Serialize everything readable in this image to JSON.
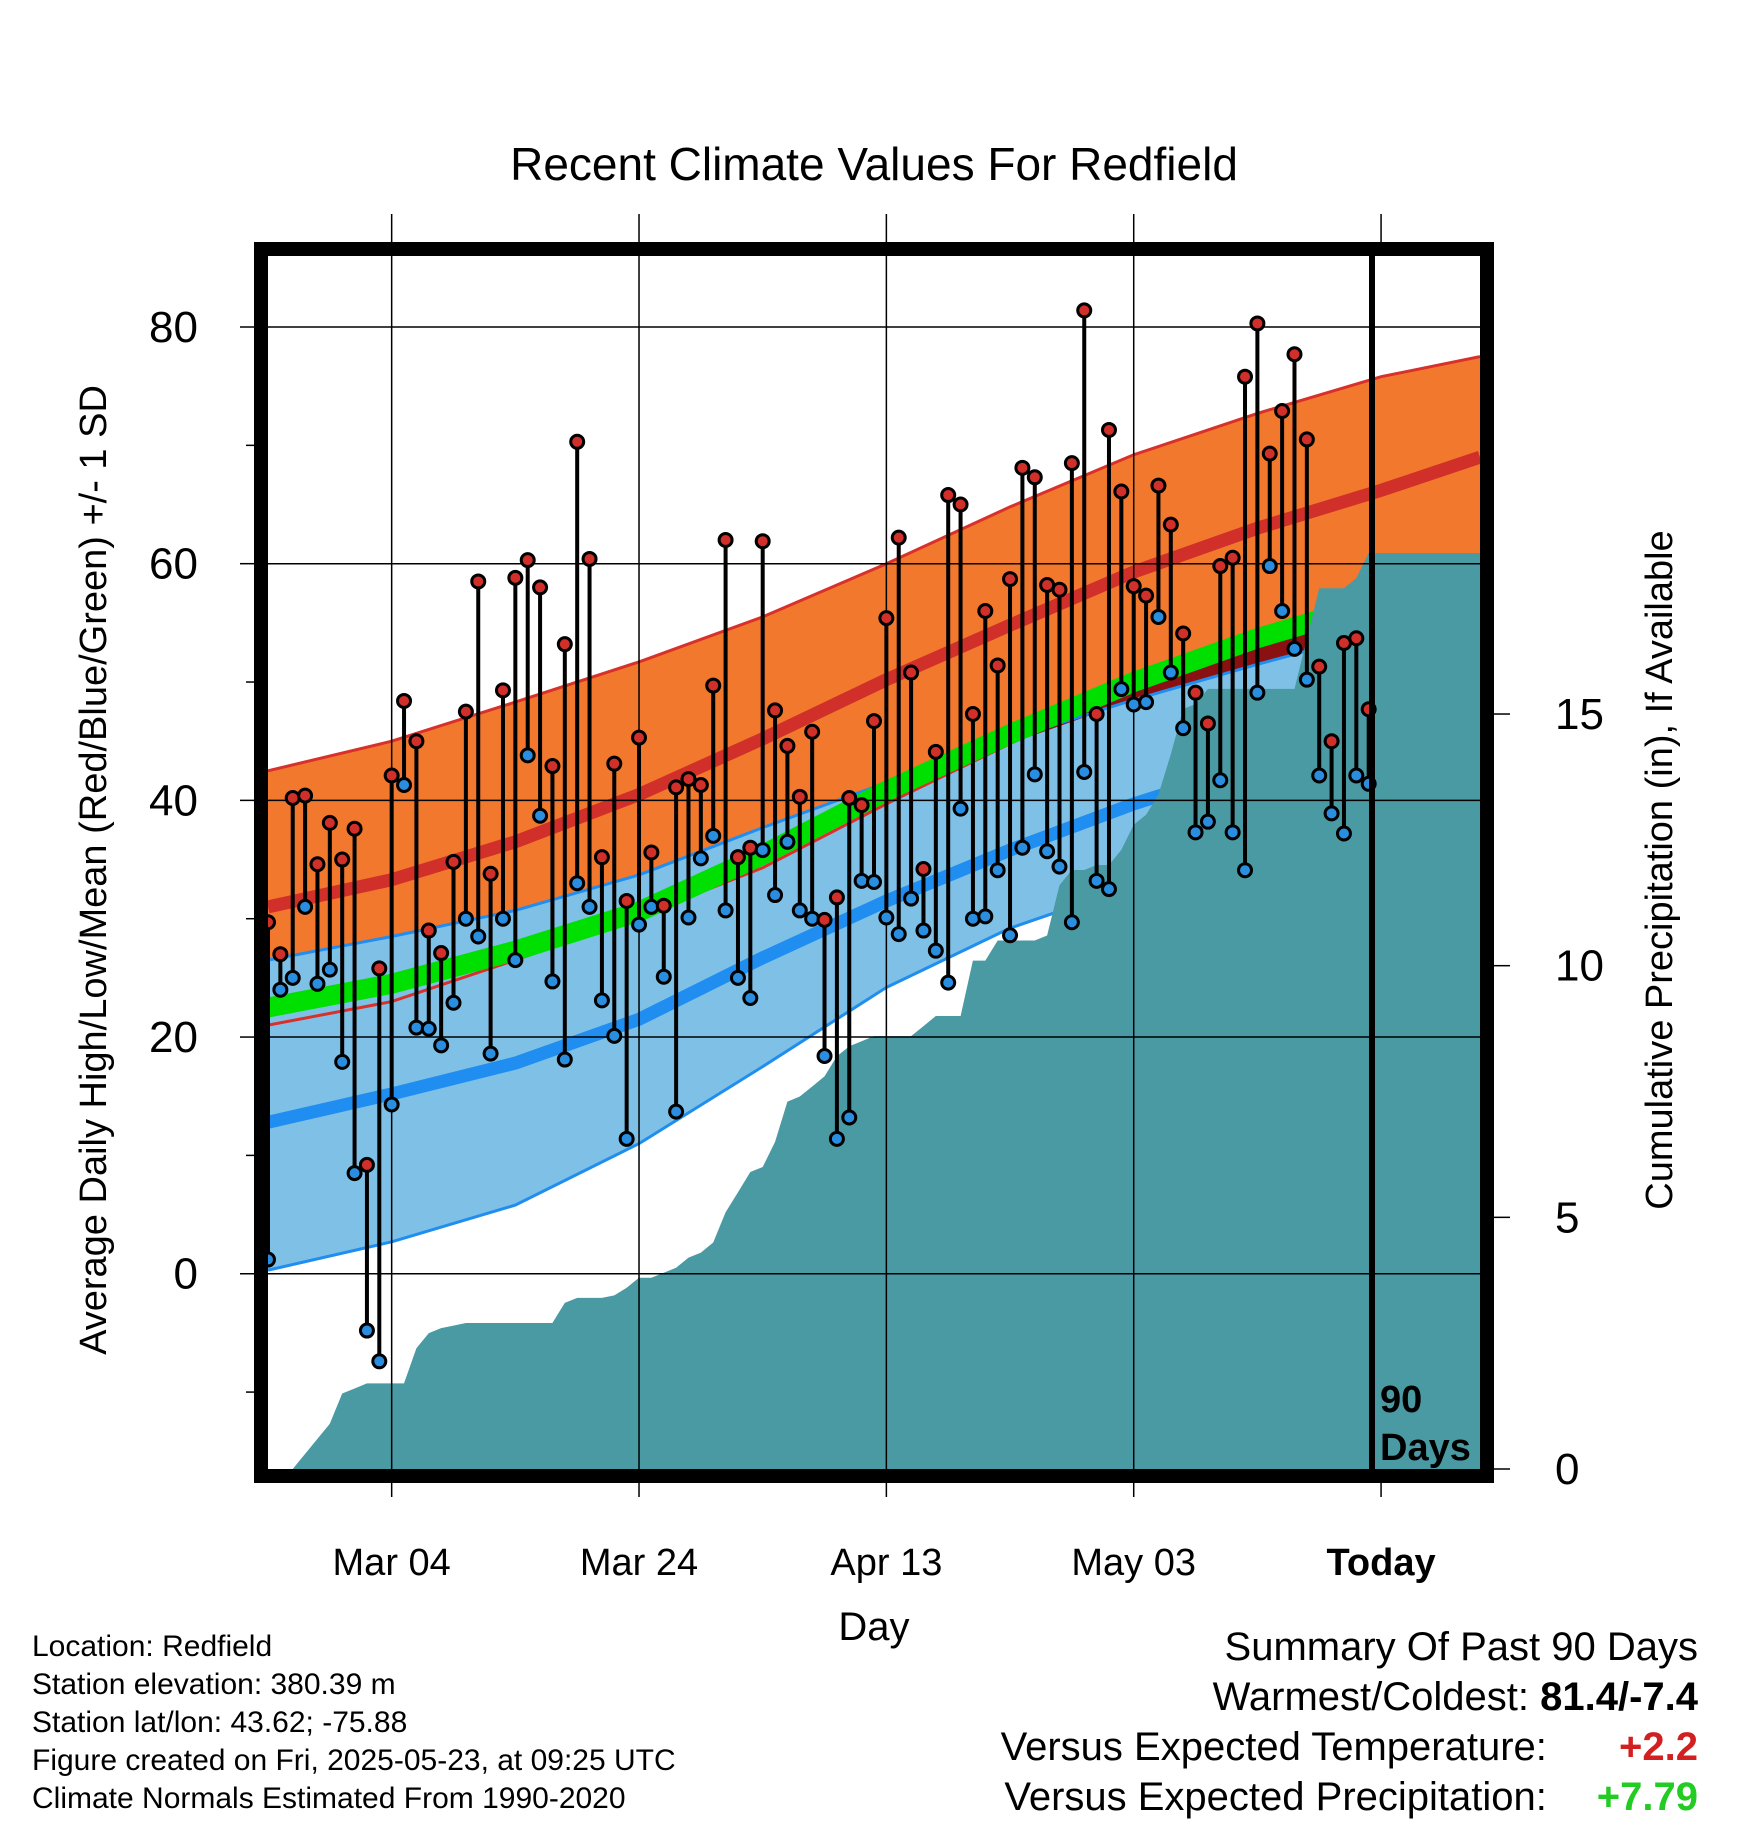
{
  "title": "Recent Climate Values For Redfield",
  "x_axis": {
    "label": "Day",
    "ticks": [
      "Mar 04",
      "Mar 24",
      "Apr 13",
      "May 03",
      "Today"
    ]
  },
  "y_axis_left": {
    "label": "Average Daily High/Low/Mean (Red/Blue/Green) +/- 1 SD",
    "ticks": [
      "0",
      "20",
      "40",
      "60",
      "80"
    ]
  },
  "y_axis_right": {
    "label": "Cumulative Precipitation (in), If Available",
    "ticks": [
      "0",
      "5",
      "10",
      "15"
    ]
  },
  "today_marker_label": [
    "90",
    "Days"
  ],
  "info": {
    "location": "Location: Redfield",
    "elevation": "Station elevation: 380.39 m",
    "latlon": "Station lat/lon: 43.62; -75.88",
    "created": "Figure created on Fri, 2025-05-23, at 09:25 UTC",
    "normals": "Climate Normals Estimated From 1990-2020"
  },
  "summary": {
    "title": "Summary Of Past 90 Days",
    "warmest_coldest_label": "Warmest/Coldest:",
    "warmest_coldest_value": "81.4/-7.4",
    "temp_label": "Versus Expected Temperature:",
    "temp_value": "+2.2",
    "precip_label": "Versus Expected Precipitation:",
    "precip_value": "+7.79"
  },
  "colors": {
    "high_band": "#f2782d",
    "high_mean": "#d12f2a",
    "low_band": "#7fc1e6",
    "low_mean": "#1f8ef0",
    "mean": "#00e000",
    "overlap": "#8b1012",
    "precip": "#4a9aa4",
    "warm_text": "#d22020",
    "wet_text": "#22cc22"
  },
  "chart_data": {
    "type": "line",
    "x_start": "2025-02-22",
    "x_end": "2025-05-31",
    "today": "2025-05-23",
    "ylim": [
      -16.5,
      86
    ],
    "ylim_right": [
      0,
      24.1
    ],
    "normals": {
      "x": [
        "2025-02-22",
        "2025-03-04",
        "2025-03-14",
        "2025-03-24",
        "2025-04-03",
        "2025-04-13",
        "2025-04-23",
        "2025-05-03",
        "2025-05-13",
        "2025-05-23",
        "2025-05-31"
      ],
      "high_mean": [
        31,
        33.3,
        36.5,
        40.5,
        45.2,
        50.2,
        54.8,
        59.3,
        63,
        66.2,
        69
      ],
      "high_upper": [
        42.5,
        45,
        48.3,
        51.7,
        55.5,
        60,
        64.8,
        69.2,
        72.7,
        75.8,
        77.5
      ],
      "high_lower": [
        21,
        23,
        26.5,
        30.2,
        34.3,
        39.7,
        44.8,
        49.5,
        53.3,
        56.6,
        60.2
      ],
      "low_mean": [
        12.8,
        15.2,
        17.8,
        21.5,
        26.7,
        31.5,
        35.8,
        39.7,
        43,
        46,
        49.2
      ],
      "low_upper": [
        26.5,
        28.5,
        30.7,
        33.7,
        37.7,
        41.5,
        45.2,
        48.5,
        51.5,
        54.3,
        56.8
      ],
      "low_lower": [
        0.3,
        2.7,
        5.8,
        11,
        17.5,
        24.2,
        29.2,
        32.8,
        36.2,
        38.8,
        41.8
      ],
      "mean": [
        22.5,
        24.5,
        27.3,
        30.6,
        35.4,
        40.8,
        45.6,
        50,
        53.7,
        56.8,
        59.2
      ]
    },
    "daily_start": "2025-02-22",
    "highs": [
      29.7,
      27,
      40.2,
      40.4,
      34.6,
      38.1,
      35,
      37.6,
      9.2,
      25.8,
      42.1,
      48.4,
      45,
      29,
      27.1,
      34.8,
      47.5,
      58.5,
      33.8,
      49.3,
      58.8,
      60.3,
      58,
      42.9,
      53.2,
      70.3,
      60.4,
      35.2,
      43.1,
      31.5,
      45.3,
      35.6,
      31.1,
      41.1,
      41.8,
      41.3,
      49.7,
      62,
      35.2,
      36,
      61.9,
      47.6,
      44.6,
      40.3,
      45.8,
      29.9,
      31.8,
      40.2,
      39.6,
      46.7,
      55.4,
      62.2,
      50.8,
      34.2,
      44.1,
      65.8,
      65,
      47.3,
      56,
      51.4,
      58.7,
      68.1,
      67.3,
      58.2,
      57.8,
      68.5,
      81.4,
      47.3,
      71.3,
      66.1,
      58.1,
      57.3,
      66.6,
      63.3,
      54.1,
      49.1,
      46.5,
      59.8,
      60.5,
      75.8,
      80.3,
      69.3,
      72.9,
      77.7,
      70.5,
      51.3,
      45,
      53.3,
      53.7,
      47.7
    ],
    "lows": [
      1.2,
      24,
      25,
      31,
      24.5,
      25.7,
      17.9,
      8.5,
      -4.8,
      -7.4,
      14.3,
      41.3,
      20.8,
      20.7,
      19.3,
      22.9,
      30,
      28.5,
      18.6,
      30,
      26.5,
      43.8,
      38.7,
      24.7,
      18.1,
      33,
      31,
      23.1,
      20.1,
      11.4,
      29.5,
      31,
      25.1,
      13.7,
      30.1,
      35.1,
      37,
      30.7,
      25,
      23.3,
      35.8,
      32,
      36.5,
      30.7,
      30,
      18.4,
      11.4,
      13.2,
      33.2,
      33.1,
      30.1,
      28.7,
      31.7,
      29,
      27.3,
      24.6,
      39.3,
      30,
      30.2,
      34.1,
      28.6,
      36,
      42.2,
      35.7,
      34.4,
      29.7,
      42.4,
      33.2,
      32.5,
      49.4,
      48.1,
      48.3,
      55.5,
      50.8,
      46.1,
      37.3,
      38.2,
      41.7,
      37.3,
      34.1,
      49.1,
      59.8,
      56,
      52.8,
      50.2,
      42.1,
      38.9,
      37.2,
      42.1,
      41.4
    ],
    "cumulative_precip": [
      0,
      0,
      0,
      0.3,
      0.6,
      0.9,
      1.5,
      1.6,
      1.7,
      1.7,
      1.7,
      1.7,
      2.4,
      2.7,
      2.8,
      2.85,
      2.9,
      2.9,
      2.9,
      2.9,
      2.9,
      2.9,
      2.9,
      2.9,
      3.3,
      3.4,
      3.4,
      3.4,
      3.45,
      3.6,
      3.8,
      3.8,
      3.9,
      4.0,
      4.2,
      4.3,
      4.5,
      5.1,
      5.5,
      5.9,
      6.0,
      6.5,
      7.3,
      7.4,
      7.6,
      7.8,
      8.2,
      8.4,
      8.5,
      8.6,
      8.6,
      8.6,
      8.6,
      8.8,
      9.0,
      9.0,
      9.0,
      10.1,
      10.1,
      10.5,
      10.5,
      10.5,
      10.5,
      10.6,
      11.6,
      11.9,
      11.9,
      12.0,
      12.0,
      12.3,
      12.8,
      13.0,
      13.4,
      14.2,
      15.1,
      15.2,
      15.5,
      15.5,
      15.5,
      15.5,
      15.5,
      15.5,
      15.5,
      15.5,
      16.5,
      17.5,
      17.5,
      17.5,
      17.7,
      18.2,
      18.2
    ],
    "precip_end_value": 18.2,
    "summary": {
      "warmest": 81.4,
      "coldest": -7.4,
      "temp_departure": 2.2,
      "precip_departure": 7.79
    }
  }
}
